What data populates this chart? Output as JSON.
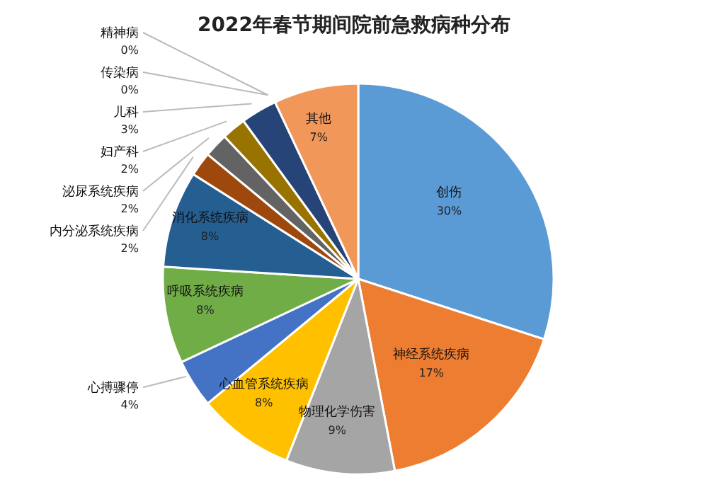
{
  "chart_data": {
    "type": "pie",
    "title": "2022年春节期间院前急救病种分布",
    "categories": [
      "创伤",
      "神经系统疾病",
      "物理化学伤害",
      "心血管系统疾病",
      "心搏骤停",
      "呼吸系统疾病",
      "消化系统疾病",
      "内分泌系统疾病",
      "泌尿系统疾病",
      "妇产科",
      "儿科",
      "传染病",
      "精神病",
      "其他"
    ],
    "values": [
      30,
      17,
      9,
      8,
      4,
      8,
      8,
      2,
      2,
      2,
      3,
      0,
      0,
      7
    ],
    "value_labels": [
      "30%",
      "17%",
      "9%",
      "8%",
      "4%",
      "8%",
      "8%",
      "2%",
      "2%",
      "2%",
      "3%",
      "0%",
      "0%",
      "7%"
    ],
    "colors": [
      "#5b9bd5",
      "#ed7d31",
      "#a5a5a5",
      "#ffc000",
      "#4472c4",
      "#70ad47",
      "#255e91",
      "#9e480e",
      "#636363",
      "#997300",
      "#264478",
      "#43682b",
      "#7cafdd",
      "#f1975a"
    ],
    "legend": false
  }
}
